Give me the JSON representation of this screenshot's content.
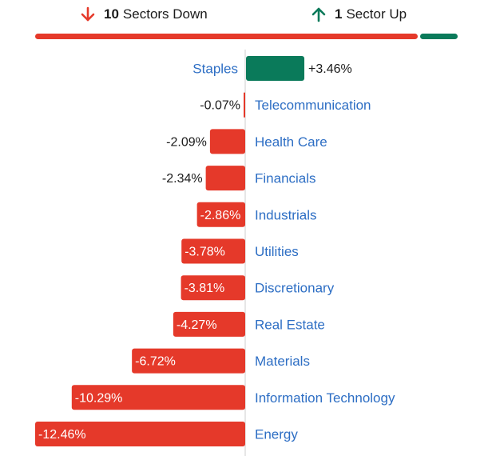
{
  "summary": {
    "down_count": "10",
    "down_text": "Sectors Down",
    "up_count": "1",
    "up_text": "Sector Up",
    "down_fraction": 0.91,
    "up_fraction": 0.09
  },
  "colors": {
    "negative": "#e5392a",
    "positive": "#0a7a5a",
    "label_link": "#2d6ec4",
    "axis": "#cccccc"
  },
  "icons": {
    "down": "arrow-down-icon",
    "up": "arrow-up-icon"
  },
  "chart_data": {
    "type": "bar",
    "orientation": "horizontal",
    "categories": [
      "Staples",
      "Telecommunication",
      "Health Care",
      "Financials",
      "Industrials",
      "Utilities",
      "Discretionary",
      "Real Estate",
      "Materials",
      "Information Technology",
      "Energy"
    ],
    "values": [
      3.46,
      -0.07,
      -2.09,
      -2.34,
      -2.86,
      -3.78,
      -3.81,
      -4.27,
      -6.72,
      -10.29,
      -12.46
    ],
    "value_labels": [
      "+3.46%",
      "-0.07%",
      "-2.09%",
      "-2.34%",
      "-2.86%",
      "-3.78%",
      "-3.81%",
      "-4.27%",
      "-6.72%",
      "-10.29%",
      "-12.46%"
    ],
    "xlim": [
      -12.46,
      3.46
    ],
    "grid": false,
    "legend": "none"
  }
}
